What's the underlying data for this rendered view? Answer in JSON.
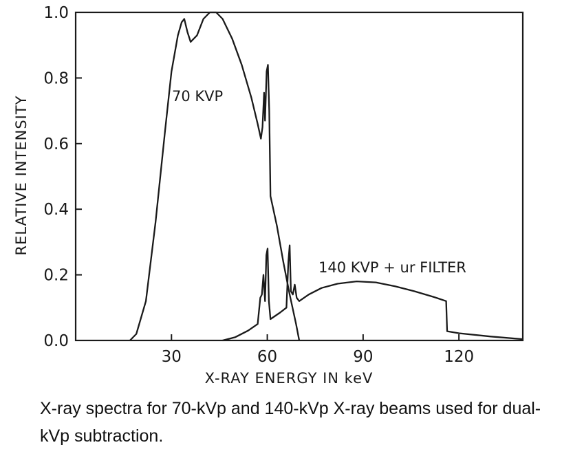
{
  "chart_data": {
    "type": "line",
    "xlabel": "X-RAY ENERGY IN keV",
    "ylabel": "RELATIVE INTENSITY",
    "xlim": [
      0,
      140
    ],
    "ylim": [
      0,
      1.0
    ],
    "xticks": [
      30,
      60,
      90,
      120
    ],
    "yticks": [
      0.0,
      0.2,
      0.4,
      0.6,
      0.8,
      1.0
    ],
    "xtick_labels": [
      "30",
      "60",
      "90",
      "120"
    ],
    "ytick_labels": [
      "0.0",
      "0.2",
      "0.4",
      "0.6",
      "0.8",
      "1.0"
    ],
    "grid": false,
    "series": [
      {
        "name": "70 KVP",
        "points": [
          [
            17,
            0
          ],
          [
            19,
            0.02
          ],
          [
            22,
            0.12
          ],
          [
            25,
            0.36
          ],
          [
            28,
            0.64
          ],
          [
            30,
            0.82
          ],
          [
            32,
            0.93
          ],
          [
            33.2,
            0.97
          ],
          [
            34,
            0.98
          ],
          [
            35,
            0.94
          ],
          [
            36,
            0.91
          ],
          [
            38,
            0.93
          ],
          [
            40,
            0.98
          ],
          [
            42,
            1.0
          ],
          [
            44,
            1.0
          ],
          [
            46,
            0.98
          ],
          [
            49,
            0.92
          ],
          [
            52,
            0.84
          ],
          [
            55,
            0.74
          ],
          [
            57,
            0.66
          ],
          [
            58,
            0.615
          ],
          [
            58.5,
            0.65
          ],
          [
            59,
            0.755
          ],
          [
            59.3,
            0.67
          ],
          [
            59.8,
            0.82
          ],
          [
            60.2,
            0.84
          ],
          [
            60.6,
            0.7
          ],
          [
            61,
            0.44
          ],
          [
            63,
            0.35
          ],
          [
            65,
            0.24
          ],
          [
            67,
            0.14
          ],
          [
            69,
            0.05
          ],
          [
            70,
            0
          ]
        ]
      },
      {
        "name": "140 KVP + ur FILTER",
        "points": [
          [
            46,
            0
          ],
          [
            50,
            0.01
          ],
          [
            54,
            0.03
          ],
          [
            57,
            0.05
          ],
          [
            57.8,
            0.13
          ],
          [
            58.3,
            0.14
          ],
          [
            58.8,
            0.2
          ],
          [
            59.3,
            0.12
          ],
          [
            59.7,
            0.26
          ],
          [
            60.1,
            0.28
          ],
          [
            60.5,
            0.12
          ],
          [
            61,
            0.065
          ],
          [
            64,
            0.085
          ],
          [
            66,
            0.1
          ],
          [
            66.6,
            0.24
          ],
          [
            67,
            0.29
          ],
          [
            67.4,
            0.15
          ],
          [
            68,
            0.14
          ],
          [
            68.6,
            0.17
          ],
          [
            69.2,
            0.13
          ],
          [
            70,
            0.12
          ],
          [
            73,
            0.14
          ],
          [
            77,
            0.16
          ],
          [
            82,
            0.173
          ],
          [
            88,
            0.18
          ],
          [
            94,
            0.177
          ],
          [
            100,
            0.165
          ],
          [
            106,
            0.15
          ],
          [
            112,
            0.133
          ],
          [
            116,
            0.12
          ],
          [
            116.3,
            0.028
          ],
          [
            120,
            0.022
          ],
          [
            130,
            0.012
          ],
          [
            140,
            0.004
          ]
        ]
      }
    ],
    "caption": "X-ray spectra for 70-kVp and 140-kVp X-ray beams used for dual- kVp subtraction."
  }
}
